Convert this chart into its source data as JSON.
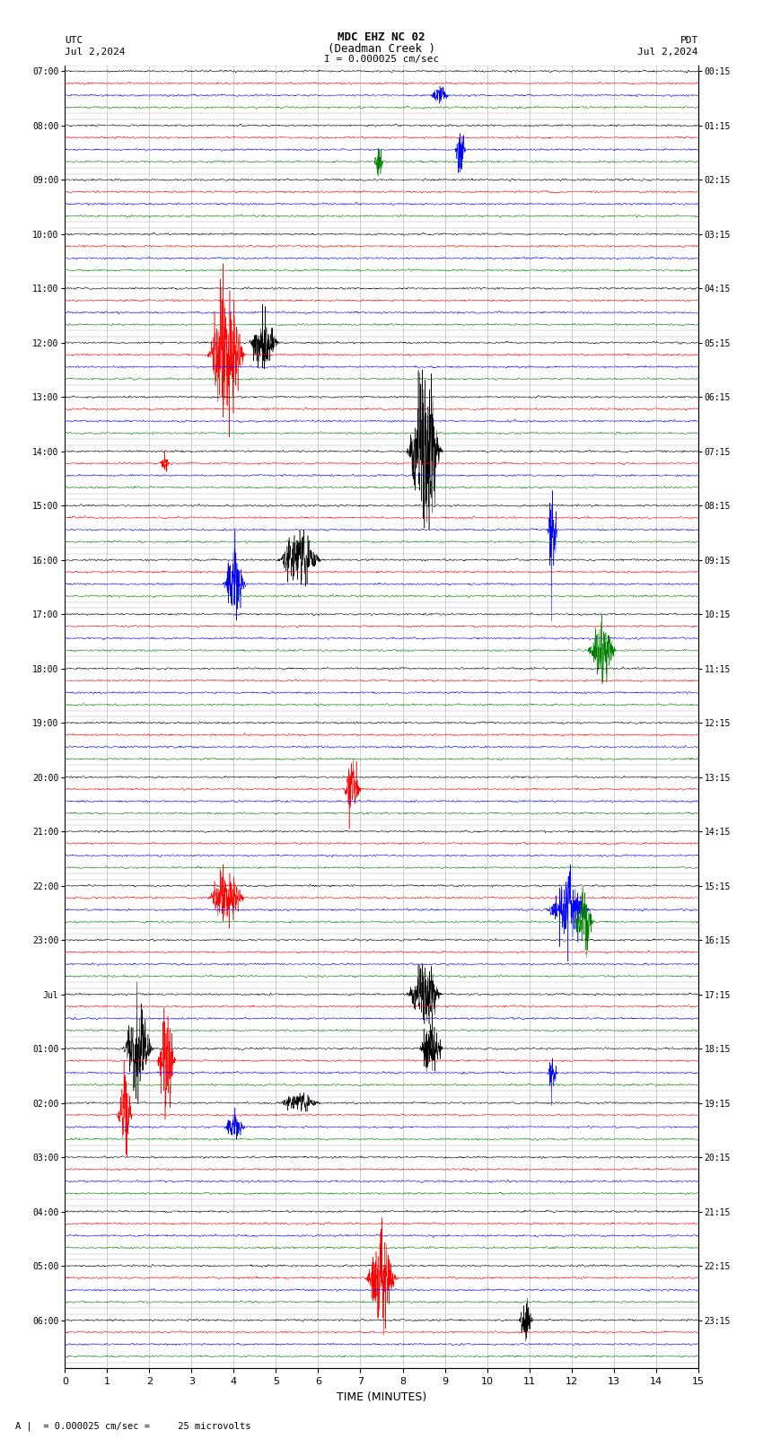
{
  "title_line1": "MDC EHZ NC 02",
  "title_line2": "(Deadman Creek )",
  "scale_label": "I = 0.000025 cm/sec",
  "utc_label": "UTC",
  "pdt_label": "PDT",
  "date_left": "Jul 2,2024",
  "date_right": "Jul 2,2024",
  "xlabel": "TIME (MINUTES)",
  "footnote": "A |  = 0.000025 cm/sec =     25 microvolts",
  "xlim": [
    0,
    15
  ],
  "xticks": [
    0,
    1,
    2,
    3,
    4,
    5,
    6,
    7,
    8,
    9,
    10,
    11,
    12,
    13,
    14,
    15
  ],
  "num_hours": 24,
  "traces_per_hour": 4,
  "trace_colors": [
    "black",
    "red",
    "blue",
    "green"
  ],
  "background_color": "white",
  "fig_width": 8.5,
  "fig_height": 16.13,
  "dpi": 100,
  "utc_times": [
    "07:00",
    "08:00",
    "09:00",
    "10:00",
    "11:00",
    "12:00",
    "13:00",
    "14:00",
    "15:00",
    "16:00",
    "17:00",
    "18:00",
    "19:00",
    "20:00",
    "21:00",
    "22:00",
    "23:00",
    "Jul",
    "01:00",
    "02:00",
    "03:00",
    "04:00",
    "05:00",
    "06:00"
  ],
  "pdt_times": [
    "00:15",
    "01:15",
    "02:15",
    "03:15",
    "04:15",
    "05:15",
    "06:15",
    "07:15",
    "08:15",
    "09:15",
    "10:15",
    "11:15",
    "12:15",
    "13:15",
    "14:15",
    "15:15",
    "16:15",
    "17:15",
    "18:15",
    "19:15",
    "20:15",
    "21:15",
    "22:15",
    "23:15"
  ]
}
